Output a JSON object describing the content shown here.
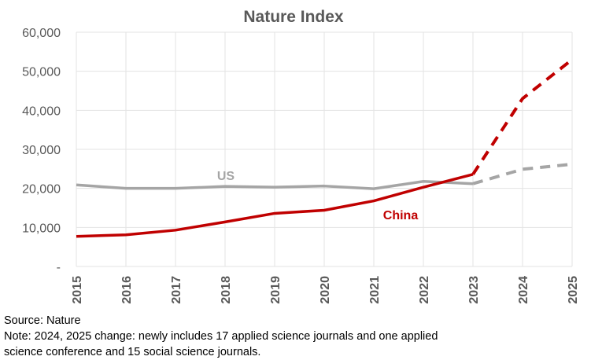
{
  "chart_data": {
    "type": "line",
    "title": "Nature Index",
    "x": [
      "2015",
      "2016",
      "2017",
      "2018",
      "2019",
      "2020",
      "2021",
      "2022",
      "2023",
      "2024",
      "2025"
    ],
    "ylim": [
      0,
      60000
    ],
    "yticks": [
      {
        "value": 0,
        "label": "-"
      },
      {
        "value": 10000,
        "label": "10,000"
      },
      {
        "value": 20000,
        "label": "20,000"
      },
      {
        "value": 30000,
        "label": "30,000"
      },
      {
        "value": 40000,
        "label": "40,000"
      },
      {
        "value": 50000,
        "label": "50,000"
      },
      {
        "value": 60000,
        "label": "60,000"
      }
    ],
    "grid": true,
    "series": [
      {
        "name": "US",
        "color": "#A5A5A5",
        "values": [
          20900,
          20000,
          20000,
          20500,
          20300,
          20600,
          19900,
          21800,
          21200,
          24900,
          26200
        ],
        "dashed_from": "2023"
      },
      {
        "name": "China",
        "color": "#C00000",
        "values": [
          7700,
          8100,
          9300,
          11400,
          13600,
          14400,
          16800,
          20300,
          23600,
          43000,
          53000
        ],
        "dashed_from": "2023"
      }
    ]
  },
  "footer": {
    "source": "Source: Nature",
    "note_line1": "Note: 2024, 2025 change: newly includes 17 applied science journals and one applied",
    "note_line2": "science conference and 15 social science journals."
  }
}
